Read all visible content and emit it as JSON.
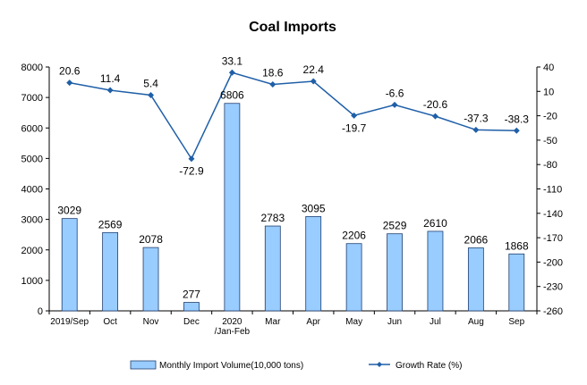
{
  "chart_data": {
    "type": "bar",
    "title": "Coal Imports",
    "categories": [
      "2019/Sep",
      "Oct",
      "Nov",
      "Dec",
      "2020\n/Jan-Feb",
      "Mar",
      "Apr",
      "May",
      "Jun",
      "Jul",
      "Aug",
      "Sep"
    ],
    "series": [
      {
        "name": "Monthly Import Volume(10,000 tons)",
        "type": "bar",
        "axis": "left",
        "color": "#99ccff",
        "values": [
          3029,
          2569,
          2078,
          277,
          6806,
          2783,
          3095,
          2206,
          2529,
          2610,
          2066,
          1868
        ]
      },
      {
        "name": "Growth Rate (%)",
        "type": "line",
        "axis": "right",
        "color": "#1f5fa8",
        "values": [
          20.6,
          11.4,
          5.4,
          -72.9,
          33.1,
          18.6,
          22.4,
          -19.7,
          -6.6,
          -20.6,
          -37.3,
          -38.3
        ]
      }
    ],
    "y_left": {
      "min": 0,
      "max": 8000,
      "step": 1000
    },
    "y_right": {
      "min": -260,
      "max": 40,
      "step": 30
    },
    "grid": false,
    "legend": "bottom"
  }
}
